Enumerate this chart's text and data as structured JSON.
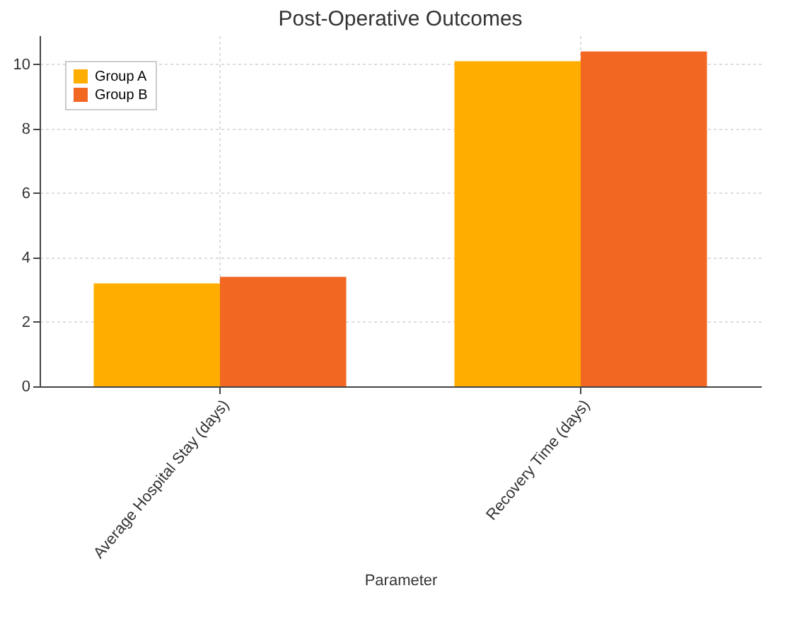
{
  "chart_data": {
    "type": "bar",
    "title": "Post-Operative Outcomes",
    "xlabel": "Parameter",
    "categories": [
      "Average Hospital Stay (days)",
      "Recovery Time (days)"
    ],
    "series": [
      {
        "name": "Group A",
        "color": "#ffae00",
        "values": [
          3.2,
          10.1
        ]
      },
      {
        "name": "Group B",
        "color": "#f26722",
        "values": [
          3.4,
          10.4
        ]
      }
    ],
    "ylim": [
      0,
      10.9
    ],
    "yticks": [
      0,
      2,
      4,
      6,
      8,
      10
    ],
    "grid": true,
    "legend": "top left"
  }
}
